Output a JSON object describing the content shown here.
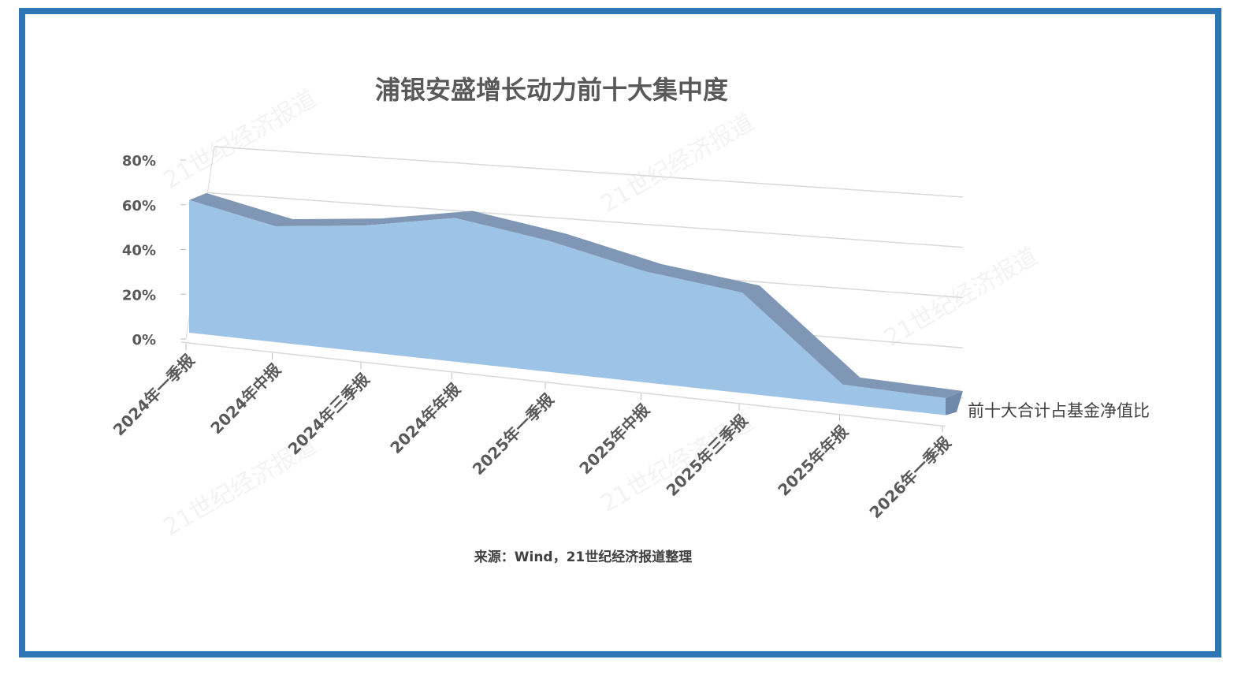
{
  "chart_data": {
    "type": "area3d",
    "title": "浦银安盛增长动力前十大集中度",
    "categories": [
      "2024年一季报",
      "2024年中报",
      "2024年三季报",
      "2024年年报",
      "2025年一季报",
      "2025年中报",
      "2025年三季报",
      "2025年年报",
      "2026年一季报"
    ],
    "series": [
      {
        "name": "前十大合计占基金净值比",
        "color": "#9dc3e6",
        "values": [
          59,
          51,
          55,
          62,
          56,
          47,
          42,
          8,
          7
        ]
      }
    ],
    "ylim": [
      0,
      80
    ],
    "yticks": [
      {
        "value": 0,
        "label": "0%"
      },
      {
        "value": 20,
        "label": "20%"
      },
      {
        "value": 40,
        "label": "40%"
      },
      {
        "value": 60,
        "label": "60%"
      },
      {
        "value": 80,
        "label": "80%"
      }
    ],
    "grid": true,
    "note": "来源：Wind，21世纪经济报道整理",
    "watermark": "21世纪经济报道"
  }
}
